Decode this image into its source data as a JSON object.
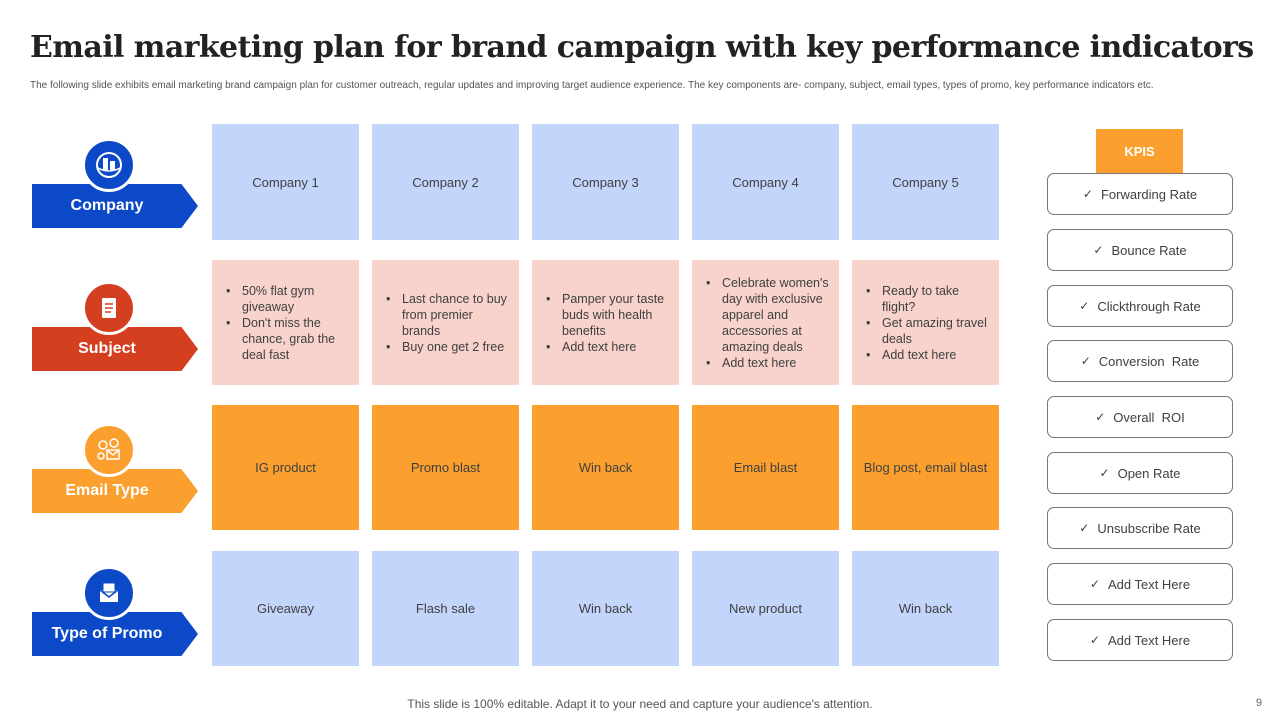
{
  "title": "Email marketing plan for brand campaign with key performance indicators",
  "subtitle": "The following slide exhibits email marketing brand campaign plan for  customer outreach, regular updates and improving target audience experience. The key components are- company, subject, email types, types of promo, key performance indicators etc.",
  "colors": {
    "blue": "#0b49c9",
    "red": "#d43f1f",
    "orange": "#fb9f2e",
    "light_blue": "#c3d5fb",
    "pink": "#f8d3cb"
  },
  "rows": [
    {
      "label": "Company",
      "icon": "building-globe-icon"
    },
    {
      "label": "Subject",
      "icon": "document-icon"
    },
    {
      "label": "Email Type",
      "icon": "email-money-icon"
    },
    {
      "label": "Type of Promo",
      "icon": "envelope-icon"
    }
  ],
  "companies": [
    "Company 1",
    "Company 2",
    "Company 3",
    "Company 4",
    "Company 5"
  ],
  "subjects": [
    [
      "50% flat gym giveaway",
      "Don't miss the chance, grab the deal fast"
    ],
    [
      "Last chance to buy from premier brands",
      "Buy one get 2 free"
    ],
    [
      "Pamper your taste buds with health benefits",
      "Add text here"
    ],
    [
      "Celebrate women's day with exclusive apparel and accessories at amazing deals",
      "Add text here"
    ],
    [
      "Ready to take flight?",
      "Get amazing travel deals",
      "Add text here"
    ]
  ],
  "email_types": [
    "IG product",
    "Promo blast",
    "Win back",
    "Email blast",
    "Blog post, email blast"
  ],
  "promo_types": [
    "Giveaway",
    "Flash sale",
    "Win back",
    "New product",
    "Win back"
  ],
  "kpis": {
    "header": "KPIS",
    "check": "✓",
    "items": [
      "Forwarding Rate",
      "Bounce Rate",
      "Clickthrough Rate",
      "Conversion  Rate",
      "Overall  ROI",
      "Open Rate",
      "Unsubscribe Rate",
      "Add Text Here",
      "Add Text Here"
    ]
  },
  "footer": "This slide is 100% editable. Adapt it to your need and capture your audience's attention.",
  "page_number": "9"
}
